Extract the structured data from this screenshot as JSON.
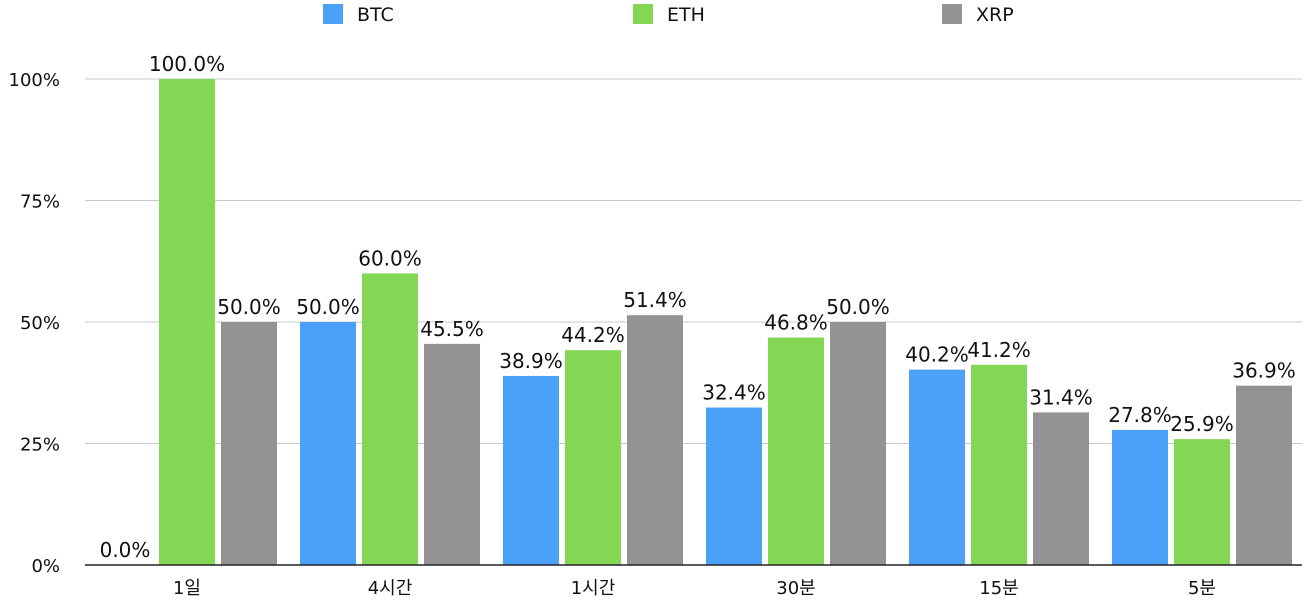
{
  "chart_data": {
    "type": "bar",
    "categories": [
      "1일",
      "4시간",
      "1시간",
      "30분",
      "15분",
      "5분"
    ],
    "series": [
      {
        "name": "BTC",
        "color": "#4aa1f7",
        "values": [
          0.0,
          50.0,
          38.9,
          32.4,
          40.2,
          27.8
        ]
      },
      {
        "name": "ETH",
        "color": "#84d655",
        "values": [
          100.0,
          60.0,
          44.2,
          46.8,
          41.2,
          25.9
        ]
      },
      {
        "name": "XRP",
        "color": "#939393",
        "values": [
          50.0,
          45.5,
          51.4,
          50.0,
          31.4,
          36.9
        ]
      }
    ],
    "ylim": [
      0,
      100
    ],
    "yticks": [
      0,
      25,
      50,
      75,
      100
    ],
    "ytick_labels": [
      "0%",
      "25%",
      "50%",
      "75%",
      "100%"
    ],
    "data_label_suffix": "%",
    "data_label_decimals": 1,
    "grid": true,
    "legend_position": "top",
    "title": "",
    "xlabel": "",
    "ylabel": ""
  }
}
